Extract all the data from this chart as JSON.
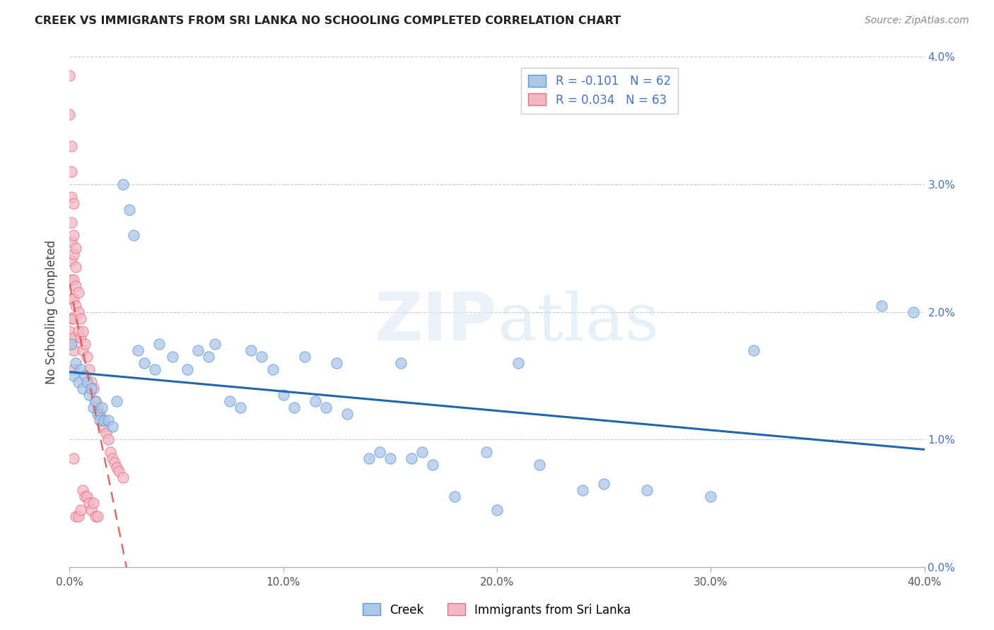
{
  "title": "CREEK VS IMMIGRANTS FROM SRI LANKA NO SCHOOLING COMPLETED CORRELATION CHART",
  "source": "Source: ZipAtlas.com",
  "ylabel": "No Schooling Completed",
  "xlabel_creek": "Creek",
  "xlabel_srilanka": "Immigrants from Sri Lanka",
  "x_min": 0.0,
  "x_max": 0.4,
  "y_min": 0.0,
  "y_max": 0.04,
  "creek_color": "#aec6e8",
  "creek_edge_color": "#5b9bd5",
  "srilanka_color": "#f4b8c1",
  "srilanka_edge_color": "#e07090",
  "creek_line_color": "#2166ac",
  "srilanka_line_color": "#d9534f",
  "creek_R": -0.101,
  "creek_N": 62,
  "srilanka_R": 0.034,
  "srilanka_N": 63,
  "watermark": "ZIPatlas",
  "creek_x": [
    0.001,
    0.002,
    0.003,
    0.004,
    0.005,
    0.006,
    0.007,
    0.008,
    0.009,
    0.01,
    0.011,
    0.012,
    0.013,
    0.014,
    0.015,
    0.016,
    0.018,
    0.02,
    0.022,
    0.025,
    0.028,
    0.03,
    0.032,
    0.035,
    0.04,
    0.042,
    0.048,
    0.055,
    0.06,
    0.065,
    0.068,
    0.075,
    0.08,
    0.085,
    0.09,
    0.095,
    0.1,
    0.105,
    0.11,
    0.115,
    0.12,
    0.125,
    0.13,
    0.14,
    0.145,
    0.15,
    0.155,
    0.16,
    0.165,
    0.17,
    0.18,
    0.195,
    0.2,
    0.21,
    0.22,
    0.24,
    0.25,
    0.27,
    0.3,
    0.32,
    0.38,
    0.395
  ],
  "creek_y": [
    0.0175,
    0.015,
    0.016,
    0.0145,
    0.0155,
    0.014,
    0.015,
    0.0145,
    0.0135,
    0.014,
    0.0125,
    0.013,
    0.012,
    0.0115,
    0.0125,
    0.0115,
    0.0115,
    0.011,
    0.013,
    0.03,
    0.028,
    0.026,
    0.017,
    0.016,
    0.0155,
    0.0175,
    0.0165,
    0.0155,
    0.017,
    0.0165,
    0.0175,
    0.013,
    0.0125,
    0.017,
    0.0165,
    0.0155,
    0.0135,
    0.0125,
    0.0165,
    0.013,
    0.0125,
    0.016,
    0.012,
    0.0085,
    0.009,
    0.0085,
    0.016,
    0.0085,
    0.009,
    0.008,
    0.0055,
    0.009,
    0.0045,
    0.016,
    0.008,
    0.006,
    0.0065,
    0.006,
    0.0055,
    0.017,
    0.0205,
    0.02
  ],
  "srilanka_x": [
    0.0,
    0.0,
    0.0,
    0.001,
    0.001,
    0.001,
    0.001,
    0.001,
    0.001,
    0.001,
    0.001,
    0.001,
    0.001,
    0.002,
    0.002,
    0.002,
    0.002,
    0.002,
    0.002,
    0.002,
    0.002,
    0.002,
    0.002,
    0.003,
    0.003,
    0.003,
    0.003,
    0.003,
    0.004,
    0.004,
    0.004,
    0.004,
    0.005,
    0.005,
    0.005,
    0.006,
    0.006,
    0.006,
    0.007,
    0.007,
    0.008,
    0.008,
    0.009,
    0.009,
    0.01,
    0.01,
    0.011,
    0.011,
    0.012,
    0.012,
    0.013,
    0.013,
    0.014,
    0.015,
    0.016,
    0.017,
    0.018,
    0.019,
    0.02,
    0.021,
    0.022,
    0.023,
    0.025
  ],
  "srilanka_y": [
    0.0385,
    0.0355,
    0.0185,
    0.033,
    0.031,
    0.029,
    0.027,
    0.0255,
    0.024,
    0.0225,
    0.021,
    0.0195,
    0.0175,
    0.0285,
    0.026,
    0.0245,
    0.0225,
    0.021,
    0.0195,
    0.018,
    0.017,
    0.0155,
    0.0085,
    0.025,
    0.0235,
    0.022,
    0.0205,
    0.004,
    0.0215,
    0.02,
    0.0185,
    0.004,
    0.0195,
    0.018,
    0.0045,
    0.0185,
    0.017,
    0.006,
    0.0175,
    0.0055,
    0.0165,
    0.0055,
    0.0155,
    0.005,
    0.0145,
    0.0045,
    0.014,
    0.005,
    0.013,
    0.004,
    0.0125,
    0.004,
    0.012,
    0.0115,
    0.011,
    0.0105,
    0.01,
    0.009,
    0.0085,
    0.0082,
    0.0078,
    0.0075,
    0.007
  ],
  "y_ticks": [
    0.0,
    0.01,
    0.02,
    0.03,
    0.04
  ],
  "y_tick_labels": [
    "0.0%",
    "1.0%",
    "2.0%",
    "3.0%",
    "4.0%"
  ],
  "x_ticks": [
    0.0,
    0.1,
    0.2,
    0.3,
    0.4
  ],
  "x_tick_labels": [
    "0.0%",
    "10.0%",
    "20.0%",
    "30.0%",
    "40.0%"
  ]
}
